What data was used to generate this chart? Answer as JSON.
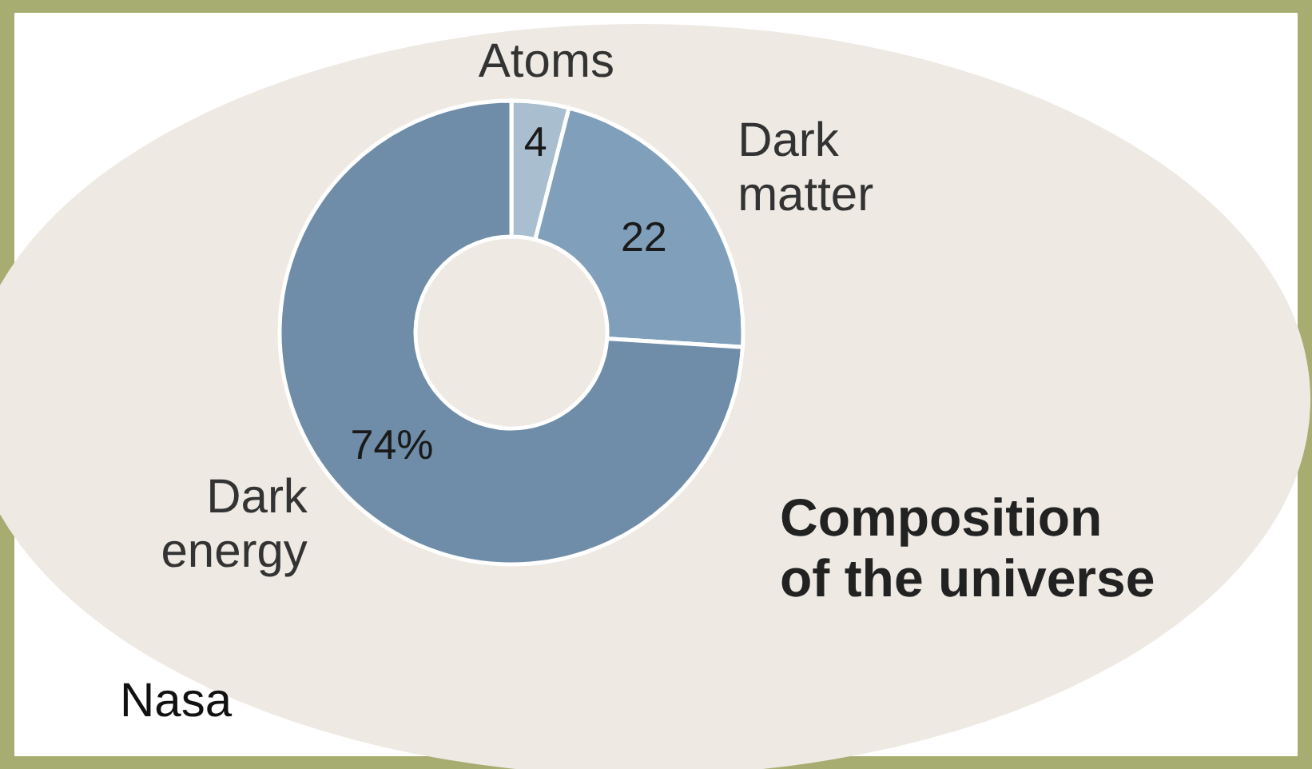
{
  "chart_data": {
    "type": "donut",
    "title": "Composition of the universe",
    "categories": [
      "Atoms",
      "Dark matter",
      "Dark energy"
    ],
    "values": [
      4,
      22,
      74
    ],
    "colors": [
      "#a9bfd0",
      "#7f9fbb",
      "#6f8da8"
    ],
    "value_labels": [
      "4",
      "22",
      "74%"
    ],
    "annotations": [
      "Nasa"
    ]
  }
}
